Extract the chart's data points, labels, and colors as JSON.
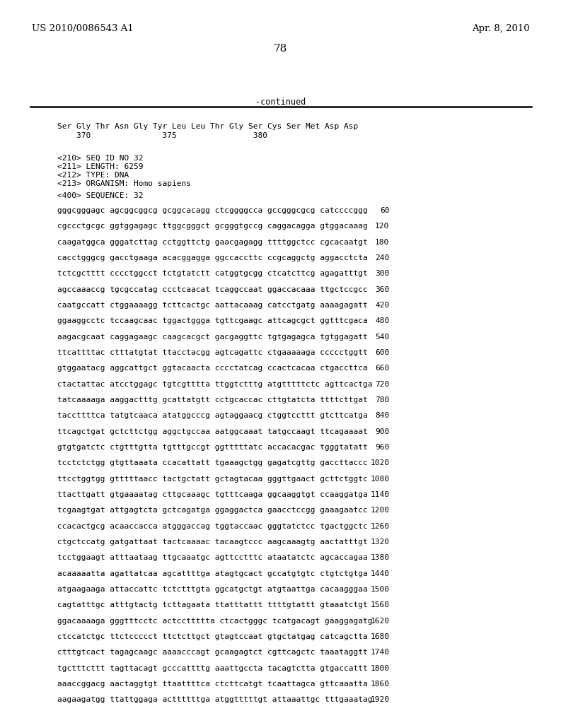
{
  "header_left": "US 2010/0086543 A1",
  "header_right": "Apr. 8, 2010",
  "page_number": "78",
  "continued_text": "-continued",
  "background_color": "#ffffff",
  "text_color": "#000000",
  "mono_font": "DejaVu Sans Mono",
  "serif_font": "DejaVu Serif",
  "protein_line1": "Ser Gly Thr Asn Gly Tyr Leu Leu Thr Gly Ser Cys Ser Met Asp Asp",
  "protein_line2": "    370               375                380",
  "seq_info": [
    "<210> SEQ ID NO 32",
    "<211> LENGTH: 6259",
    "<212> TYPE: DNA",
    "<213> ORGANISM: Homo sapiens"
  ],
  "seq_header": "<400> SEQUENCE: 32",
  "sequence_lines": [
    [
      "gggcgggagc agcggcggcg gcggcacagg ctcggggcca gccgggcgcg catccccggg",
      "60"
    ],
    [
      "cgccctgcgc ggtggagagc ttggcgggct gcgggtgccg caggacagga gtggacaaag",
      "120"
    ],
    [
      "caagatggca gggatcttag cctggttctg gaacgagagg ttttggctcc cgcacaatgt",
      "180"
    ],
    [
      "cacctgggcg gacctgaaga acacggagga ggccaccttc ccgcaggctg aggacctcta",
      "240"
    ],
    [
      "tctcgctttt cccctggcct tctgtatctt catggtgcgg ctcatcttcg agagatttgt",
      "300"
    ],
    [
      "agccaaaccg tgcgccatag ccctcaacat tcaggccaat ggaccacaaa ttgctccgcc",
      "360"
    ],
    [
      "caatgccatt ctggaaaagg tcttcactgc aattacaaag catcctgatg aaaagagatt",
      "420"
    ],
    [
      "ggaaggcctc tccaagcaac tggactggga tgttcgaagc attcagcgct ggtttcgaca",
      "480"
    ],
    [
      "aagacgcaat caggagaagc caagcacgct gacgaggttc tgtgagagca tgtggagatt",
      "540"
    ],
    [
      "ttcattttac ctttatgtat ttacctacgg agtcagattc ctgaaaaaga ccccctggtt",
      "600"
    ],
    [
      "gtggaatacg aggcattgct ggtacaacta cccctatcag ccactcacaa ctgaccttca",
      "660"
    ],
    [
      "ctactattac atcctggagc tgtcgtttta ttggtctttg atgtttttctc agttcactga",
      "720"
    ],
    [
      "tatcaaaaga aaggactttg gcattatgtt cctgcaccac cttgtatcta ttttcttgat",
      "780"
    ],
    [
      "taccttttca tatgtcaaca atatggcccg agtaggaacg ctggtccttt gtcttcatga",
      "840"
    ],
    [
      "ttcagctgat gctcttctgg aggctgccaa aatggcaaat tatgccaagt ttcagaaaat",
      "900"
    ],
    [
      "gtgtgatctc ctgtttgtta tgtttgccgt ggtttttatc accacacgac tgggtatatt",
      "960"
    ],
    [
      "tcctctctgg gtgttaaata ccacattatt tgaaagctgg gagatcgttg gaccttaccc",
      "1020"
    ],
    [
      "ttcctggtgg gtttttaacc tactgctatt gctagtacaa gggttgaact gcttctggtc",
      "1080"
    ],
    [
      "ttacttgatt gtgaaaatag cttgcaaagc tgtttcaaga ggcaaggtgt ccaaggatga",
      "1140"
    ],
    [
      "tcgaagtgat attgagtcta gctcagatga ggaggactca gaacctccgg gaaagaatcc",
      "1200"
    ],
    [
      "ccacactgcg acaaccacca atgggaccag tggtaccaac gggtatctcc tgactggctc",
      "1260"
    ],
    [
      "ctgctccatg gatgattaat tactcaaaac tacaagtccc aagcaaagtg aactatttgt",
      "1320"
    ],
    [
      "tcctggaagt atttaataag ttgcaaatgc agttcctttc ataatatctc agcaccagaa",
      "1380"
    ],
    [
      "acaaaaatta agattatcaa agcattttga atagtgcact gccatgtgtc ctgtctgtga",
      "1440"
    ],
    [
      "atgaagaaga attaccattc tctctttgta ggcatgctgt atgtaattga cacaagggaa",
      "1500"
    ],
    [
      "cagtatttgc atttgtactg tcttagaata ttatttattt ttttgtattt gtaaatctgt",
      "1560"
    ],
    [
      "ggacaaaaga gggtttcctc actccttttta ctcactgggc tcatgacagt gaaggagatg",
      "1620"
    ],
    [
      "ctccatctgc ttctccccct ttctcttgct gtagtccaat gtgctatgag catcagctta",
      "1680"
    ],
    [
      "ctttgtcact tagagcaagc aaaacccagt gcaagagtct cgttcagctc taaataggtt",
      "1740"
    ],
    [
      "tgctttcttt tagttacagt gcccattttg aaattgccta tacagtctta gtgaccattt",
      "1800"
    ],
    [
      "aaaccggacg aactaggtgt ttaattttca ctcttcatgt tcaattagca gttcaaatta",
      "1860"
    ],
    [
      "aagaagatgg ttattggaga acttttttga atggtttttgt attaaattgc tttgaaatag",
      "1920"
    ]
  ]
}
